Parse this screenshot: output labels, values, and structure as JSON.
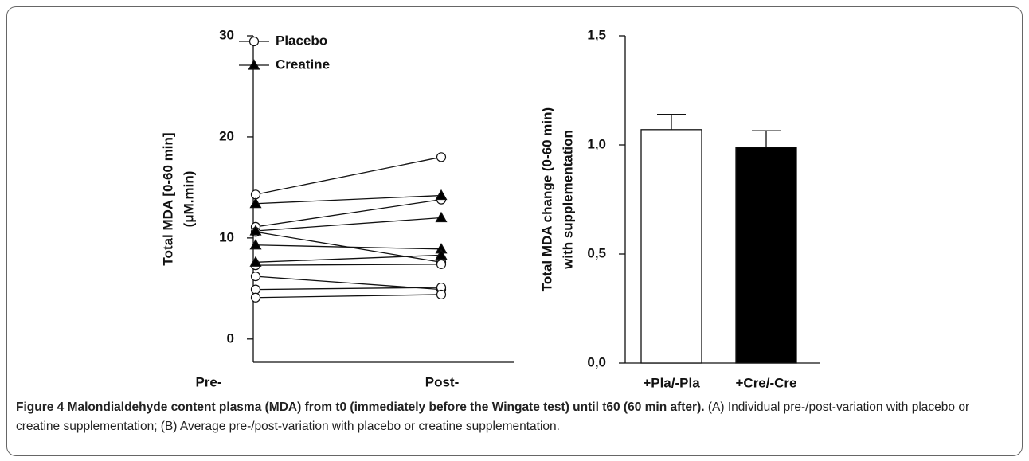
{
  "chart_data": [
    {
      "type": "paired-line",
      "categories": [
        "Pre-",
        "Post-"
      ],
      "ylabel": [
        "Total MDA [0-60 min]",
        "(μM.min)"
      ],
      "ylim": [
        -2.3,
        30
      ],
      "yticks": [
        0,
        10,
        20,
        30
      ],
      "series": [
        {
          "name": "Placebo",
          "marker": "circle",
          "color": "#ffffff",
          "pre": [
            14.3,
            11.1,
            10.6,
            7.3,
            6.2,
            4.9,
            4.1
          ],
          "post": [
            18.0,
            13.8,
            7.6,
            7.4,
            4.9,
            5.1,
            4.4
          ]
        },
        {
          "name": "Creatine",
          "marker": "triangle",
          "color": "#000000",
          "pre": [
            13.4,
            10.7,
            9.3,
            7.6
          ],
          "post": [
            14.2,
            12.0,
            8.9,
            8.3
          ]
        }
      ]
    },
    {
      "type": "bar",
      "categories": [
        "+Pla/-Pla",
        "+Cre/-Cre"
      ],
      "ylabel": [
        "Total MDA change (0-60 min)",
        "with supplementation"
      ],
      "values": [
        1.07,
        0.99
      ],
      "errors": [
        0.07,
        0.075
      ],
      "colors": [
        "#ffffff",
        "#000000"
      ],
      "ylim": [
        0,
        1.5
      ],
      "yticks": [
        {
          "value": 0,
          "label": "0,0"
        },
        {
          "value": 0.5,
          "label": "0,5"
        },
        {
          "value": 1,
          "label": "1,0"
        },
        {
          "value": 1.5,
          "label": "1,5"
        }
      ]
    }
  ],
  "caption": {
    "title": "Figure 4 Malondialdehyde content plasma (MDA) from t0 (immediately before the Wingate test) until t60 (60 min after).",
    "text": "(A) Individual pre-/post-variation with placebo or creatine supplementation; (B) Average pre-/post-variation with placebo or creatine supplementation."
  }
}
